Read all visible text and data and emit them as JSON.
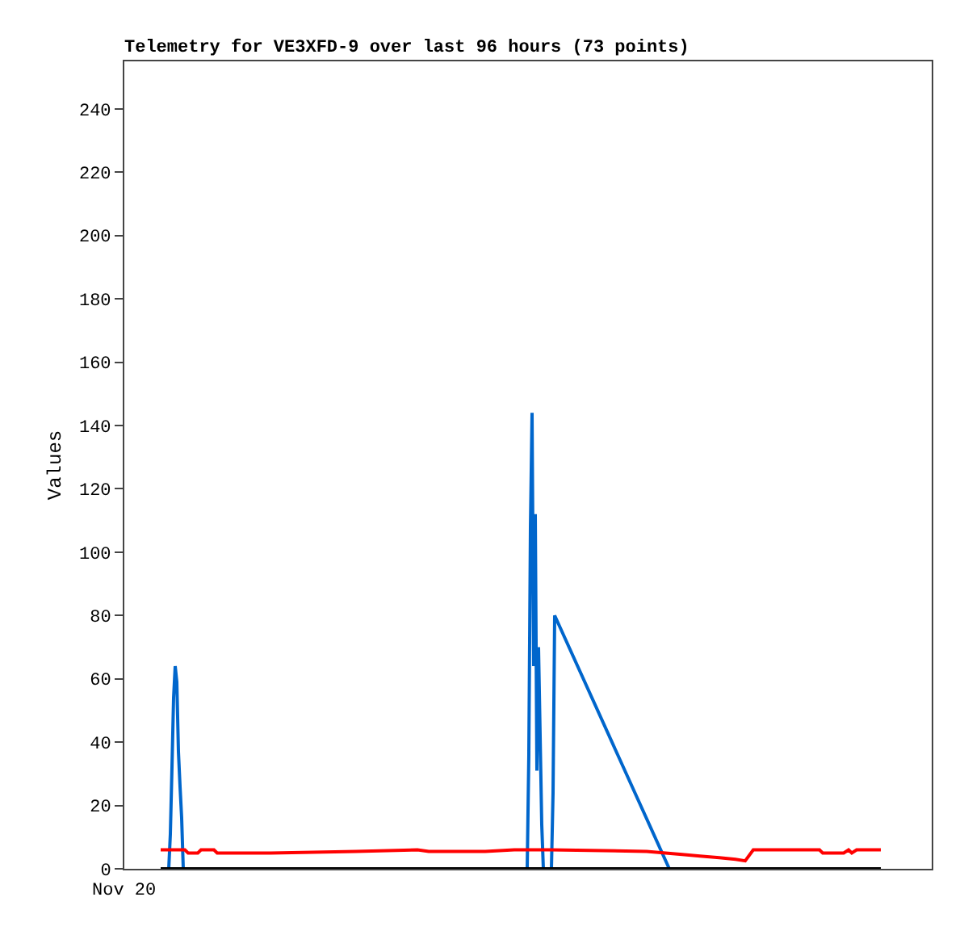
{
  "chart_data": {
    "type": "line",
    "title": "Telemetry for VE3XFD-9 over last 96 hours (73 points)",
    "ylabel": "Values",
    "annotations": [
      "Nov 20"
    ],
    "tick_labels": "y",
    "categories": [
      null,
      null,
      null,
      null,
      null,
      null,
      null,
      null,
      null,
      null,
      null,
      null,
      null,
      null,
      null,
      null,
      null,
      null,
      null,
      null,
      null,
      null,
      null,
      null,
      null,
      null,
      null,
      null,
      null,
      null,
      null,
      null,
      null,
      null,
      null,
      null,
      null,
      null,
      null,
      null,
      null,
      null,
      null,
      null,
      null,
      null,
      null,
      null,
      null,
      null,
      null,
      null,
      null,
      null,
      null,
      null,
      null,
      null,
      null,
      null,
      null,
      null,
      null,
      null,
      null,
      null,
      null,
      null,
      null,
      null,
      null,
      null,
      null,
      null,
      null,
      null,
      null,
      null,
      null,
      null,
      null,
      null,
      null,
      null,
      null,
      null,
      null,
      null,
      null,
      null,
      null,
      null,
      null,
      null,
      null,
      null,
      null,
      null,
      null,
      null,
      null,
      null,
      null,
      null,
      null,
      null,
      null,
      null,
      null,
      null,
      null,
      null,
      null,
      null,
      null,
      null,
      null,
      null,
      null,
      null,
      null,
      null,
      null,
      null,
      null,
      null,
      null,
      null,
      null,
      null,
      null,
      null,
      null,
      null,
      null,
      null,
      null,
      null,
      null,
      null,
      null,
      null,
      null,
      null,
      null,
      null,
      null,
      null,
      null,
      null,
      null,
      null,
      null,
      null,
      null,
      null,
      null,
      null,
      null,
      null,
      null,
      null,
      null,
      null,
      null,
      null,
      null,
      null,
      null,
      null,
      null,
      null,
      null,
      null,
      null,
      null,
      null,
      null,
      null,
      null,
      null,
      null,
      null,
      null,
      null,
      null,
      null,
      null,
      null,
      null,
      null,
      null,
      null,
      null,
      null,
      null,
      null,
      null,
      null,
      null,
      null,
      null,
      null,
      null,
      null,
      null,
      null,
      null,
      null,
      null,
      null,
      null,
      null,
      null,
      null,
      null,
      null,
      null,
      null,
      null,
      null,
      null,
      null,
      null,
      null,
      null,
      null,
      null,
      null,
      null,
      null,
      null,
      null,
      null,
      null,
      null,
      null,
      null,
      null,
      null,
      null,
      null,
      null,
      null,
      null,
      null,
      null,
      null,
      null,
      null,
      null,
      null,
      null,
      null,
      null,
      null,
      null,
      null,
      null,
      null,
      null,
      null,
      null,
      null,
      null,
      null,
      null,
      null,
      null,
      null,
      null,
      null,
      null,
      null,
      null,
      null,
      null,
      null,
      null,
      null,
      null,
      null,
      null,
      null,
      null,
      null,
      null,
      null,
      null,
      null,
      null,
      null,
      null,
      null,
      null,
      null,
      null,
      null,
      null,
      null,
      null,
      null,
      null,
      null,
      null,
      null,
      null,
      null,
      null,
      null,
      null,
      null,
      null,
      null,
      null,
      null,
      null,
      null,
      null,
      null,
      null,
      null,
      null,
      null,
      null,
      null,
      null,
      null,
      null,
      null,
      null,
      null,
      null,
      null,
      null,
      null,
      null,
      null,
      null,
      null,
      null,
      null,
      null,
      null,
      null,
      null,
      null,
      null,
      null,
      null,
      null,
      null,
      null,
      null,
      null,
      null,
      null,
      null,
      null,
      null,
      null,
      null,
      null,
      null,
      null,
      null,
      null,
      null,
      null,
      null,
      null,
      null,
      null,
      null,
      null,
      null,
      null,
      null,
      null,
      null,
      null,
      null,
      null,
      null,
      null,
      null,
      null,
      null,
      null,
      null,
      null,
      null,
      null,
      null,
      null,
      null,
      null,
      null,
      null,
      null,
      null,
      null,
      null,
      null,
      null,
      null,
      null,
      null,
      null,
      null,
      null,
      null,
      null,
      null,
      null,
      null,
      null,
      null,
      null,
      null,
      null,
      null,
      null,
      null,
      null,
      null,
      null,
      null,
      null,
      null,
      null,
      null,
      null,
      null,
      null,
      null,
      null,
      null,
      null,
      null,
      null,
      null,
      null,
      null,
      null,
      null,
      null,
      null,
      null,
      null,
      null,
      null,
      null,
      null,
      null,
      null,
      null,
      null,
      null,
      null,
      null,
      null,
      null,
      null,
      null,
      null,
      null,
      null,
      null,
      null,
      null,
      null,
      null,
      null,
      null,
      null,
      null,
      null,
      null,
      null,
      null,
      null,
      null,
      null,
      null,
      null,
      null,
      null,
      null,
      null,
      null,
      null,
      null,
      null,
      null,
      null,
      null,
      null,
      null,
      null
    ],
    "ylim": [
      0,
      255
    ],
    "yticks": [
      0,
      20,
      40,
      60,
      80,
      100,
      120,
      140,
      160,
      180,
      200,
      220,
      240
    ],
    "marker": "none",
    "line_style": "solid",
    "series": [
      {
        "color": "#0066cc",
        "values": [
          null,
          null,
          null,
          null,
          null,
          null,
          null,
          null,
          null,
          null,
          null,
          null,
          null,
          null,
          null,
          null,
          null,
          null,
          null,
          null,
          null,
          null,
          null,
          null,
          null,
          null,
          null,
          0,
          11,
          32,
          54,
          64,
          59,
          37,
          26,
          16,
          0,
          null,
          null,
          null,
          null,
          null,
          null,
          null,
          null,
          null,
          null,
          null,
          null,
          null,
          null,
          null,
          null,
          null,
          null,
          null,
          null,
          null,
          null,
          null,
          null,
          null,
          null,
          null,
          null,
          null,
          null,
          null,
          null,
          null,
          null,
          null,
          null,
          null,
          null,
          null,
          null,
          null,
          null,
          null,
          null,
          null,
          null,
          null,
          null,
          null,
          null,
          null,
          null,
          null,
          null,
          null,
          null,
          null,
          null,
          null,
          null,
          null,
          null,
          null,
          null,
          null,
          null,
          null,
          null,
          null,
          null,
          null,
          null,
          null,
          null,
          null,
          null,
          null,
          null,
          null,
          null,
          null,
          null,
          null,
          null,
          null,
          null,
          null,
          null,
          null,
          null,
          null,
          null,
          null,
          null,
          null,
          null,
          null,
          null,
          null,
          null,
          null,
          null,
          null,
          null,
          null,
          null,
          null,
          null,
          null,
          null,
          null,
          null,
          null,
          null,
          null,
          null,
          null,
          null,
          null,
          null,
          null,
          null,
          null,
          null,
          null,
          null,
          null,
          null,
          null,
          null,
          null,
          null,
          null,
          null,
          null,
          null,
          null,
          null,
          null,
          null,
          null,
          null,
          null,
          null,
          null,
          null,
          null,
          null,
          null,
          null,
          null,
          null,
          null,
          null,
          null,
          null,
          null,
          null,
          null,
          null,
          null,
          null,
          null,
          null,
          null,
          null,
          null,
          null,
          null,
          null,
          null,
          null,
          null,
          null,
          null,
          null,
          null,
          null,
          null,
          null,
          null,
          null,
          null,
          null,
          null,
          null,
          null,
          null,
          null,
          null,
          null,
          null,
          null,
          null,
          null,
          null,
          null,
          null,
          null,
          null,
          null,
          null,
          null,
          null,
          null,
          null,
          null,
          null,
          null,
          null,
          null,
          null,
          0,
          36,
          108,
          144,
          64,
          112,
          31,
          70,
          42,
          14,
          0,
          null,
          null,
          null,
          null,
          0,
          24,
          80,
          null,
          null,
          null,
          null,
          null,
          null,
          null,
          null,
          null,
          null,
          null,
          null,
          null,
          null,
          null,
          null,
          null,
          null,
          null,
          null,
          null,
          null,
          null,
          null,
          null,
          null,
          null,
          null,
          null,
          null,
          null,
          null,
          null,
          null,
          null,
          null,
          null,
          null,
          null,
          null,
          null,
          null,
          null,
          null,
          null,
          null,
          null,
          null,
          null,
          null,
          null,
          null,
          null,
          null,
          null,
          null,
          null,
          null,
          null,
          null,
          null,
          null,
          null,
          null,
          null,
          null,
          null,
          null,
          null,
          null,
          0,
          null,
          null,
          null,
          null,
          null,
          null,
          null,
          null,
          null,
          null,
          null,
          null,
          null,
          null,
          null,
          null,
          null,
          null,
          null,
          null,
          null,
          null,
          null,
          null,
          null,
          null,
          null,
          null,
          null,
          null,
          null,
          null,
          null,
          null,
          null,
          null,
          null,
          null,
          null,
          null,
          null,
          null,
          null,
          null,
          null,
          null,
          null,
          null,
          null,
          null,
          null,
          null,
          null,
          null,
          null,
          null,
          null,
          null,
          null,
          null,
          null,
          null,
          null,
          null,
          null,
          null,
          null,
          null,
          null,
          null,
          null,
          null,
          null,
          null,
          null,
          null,
          null,
          null,
          null,
          null,
          null,
          null,
          null,
          null,
          null,
          null,
          null,
          null,
          null,
          null,
          null,
          null,
          null,
          null,
          null,
          null,
          null,
          null,
          null,
          null,
          null,
          null,
          null,
          null,
          null,
          null,
          null,
          null,
          null,
          null,
          null,
          null,
          null,
          null,
          null,
          null,
          null,
          null,
          null,
          null,
          null,
          null,
          null,
          null,
          null,
          null,
          null,
          null,
          null,
          null,
          null,
          null,
          null,
          null,
          null,
          null,
          null,
          null,
          null,
          null,
          null,
          null,
          null,
          null,
          null,
          null,
          null,
          null,
          null,
          null,
          null,
          null,
          null,
          null,
          null,
          null,
          null,
          null,
          null,
          null,
          null,
          null
        ]
      },
      {
        "color": "#ff0000",
        "values": [
          null,
          null,
          null,
          null,
          null,
          null,
          null,
          null,
          null,
          null,
          null,
          null,
          null,
          null,
          null,
          null,
          null,
          null,
          null,
          null,
          null,
          null,
          6,
          null,
          null,
          null,
          null,
          null,
          null,
          null,
          null,
          null,
          null,
          null,
          null,
          null,
          null,
          6,
          null,
          5,
          null,
          null,
          null,
          null,
          null,
          5,
          null,
          6,
          null,
          null,
          null,
          null,
          null,
          null,
          null,
          6,
          null,
          5,
          null,
          null,
          null,
          null,
          null,
          null,
          null,
          null,
          null,
          null,
          null,
          null,
          null,
          null,
          null,
          null,
          null,
          null,
          null,
          null,
          null,
          null,
          null,
          null,
          null,
          null,
          null,
          null,
          null,
          null,
          null,
          null,
          5,
          null,
          null,
          null,
          null,
          null,
          null,
          null,
          null,
          null,
          null,
          null,
          null,
          null,
          null,
          null,
          null,
          null,
          null,
          null,
          null,
          null,
          null,
          null,
          null,
          null,
          null,
          null,
          null,
          null,
          null,
          null,
          null,
          null,
          null,
          null,
          null,
          null,
          null,
          null,
          null,
          null,
          null,
          null,
          null,
          null,
          null,
          null,
          null,
          null,
          null,
          null,
          null,
          5.5,
          null,
          null,
          null,
          null,
          null,
          null,
          null,
          null,
          null,
          null,
          null,
          null,
          null,
          null,
          null,
          null,
          null,
          null,
          null,
          null,
          null,
          null,
          null,
          null,
          null,
          null,
          null,
          null,
          null,
          null,
          null,
          null,
          null,
          null,
          null,
          null,
          null,
          6,
          null,
          null,
          null,
          null,
          null,
          null,
          5.5,
          null,
          null,
          null,
          null,
          null,
          null,
          null,
          null,
          null,
          null,
          null,
          null,
          null,
          null,
          null,
          null,
          null,
          null,
          null,
          null,
          null,
          null,
          null,
          null,
          null,
          null,
          null,
          null,
          null,
          null,
          null,
          null,
          null,
          null,
          5.5,
          null,
          null,
          null,
          null,
          null,
          null,
          null,
          null,
          null,
          null,
          null,
          null,
          null,
          null,
          null,
          null,
          null,
          6,
          null,
          null,
          null,
          null,
          null,
          null,
          null,
          null,
          null,
          null,
          null,
          null,
          null,
          null,
          null,
          null,
          null,
          null,
          null,
          null,
          null,
          6,
          null,
          null,
          null,
          null,
          null,
          null,
          null,
          null,
          null,
          null,
          null,
          null,
          null,
          null,
          null,
          null,
          null,
          null,
          null,
          null,
          null,
          null,
          null,
          null,
          null,
          null,
          null,
          null,
          null,
          null,
          null,
          null,
          null,
          null,
          null,
          null,
          null,
          null,
          null,
          null,
          null,
          null,
          null,
          null,
          null,
          null,
          null,
          null,
          null,
          null,
          null,
          null,
          null,
          null,
          null,
          null,
          null,
          null,
          null,
          5.5,
          null,
          null,
          null,
          null,
          null,
          null,
          null,
          null,
          null,
          null,
          null,
          null,
          null,
          null,
          null,
          null,
          null,
          null,
          null,
          null,
          null,
          4.5,
          null,
          null,
          null,
          null,
          null,
          null,
          null,
          null,
          null,
          null,
          4,
          null,
          null,
          null,
          null,
          null,
          null,
          null,
          null,
          null,
          null,
          null,
          3.5,
          null,
          null,
          null,
          null,
          null,
          null,
          null,
          null,
          null,
          3,
          null,
          null,
          null,
          null,
          null,
          2.5,
          null,
          null,
          null,
          null,
          6,
          null,
          null,
          null,
          null,
          null,
          null,
          null,
          null,
          null,
          null,
          null,
          null,
          null,
          null,
          null,
          null,
          null,
          null,
          null,
          null,
          null,
          null,
          null,
          null,
          null,
          null,
          null,
          null,
          null,
          null,
          null,
          null,
          null,
          null,
          null,
          null,
          null,
          null,
          null,
          null,
          6,
          null,
          5,
          null,
          null,
          null,
          null,
          null,
          null,
          null,
          null,
          null,
          null,
          null,
          null,
          5,
          null,
          null,
          6,
          null,
          5,
          null,
          null,
          6,
          null,
          null,
          null,
          null,
          null,
          null,
          null,
          null,
          null,
          null,
          null,
          null,
          null,
          null,
          6,
          null,
          null,
          null,
          null,
          null,
          null,
          null,
          null,
          null,
          null,
          null,
          null,
          null,
          null,
          null,
          null,
          null,
          null,
          null,
          null,
          null,
          null,
          null,
          null,
          null,
          null,
          null,
          null,
          null,
          null,
          null
        ]
      },
      {
        "color": "#000000",
        "values": [
          null,
          null,
          null,
          null,
          null,
          null,
          null,
          null,
          null,
          null,
          null,
          null,
          null,
          null,
          null,
          null,
          null,
          null,
          null,
          null,
          null,
          null,
          0,
          null,
          null,
          null,
          null,
          null,
          null,
          null,
          null,
          null,
          null,
          null,
          null,
          null,
          null,
          null,
          null,
          null,
          null,
          null,
          null,
          null,
          null,
          null,
          null,
          null,
          null,
          null,
          null,
          null,
          null,
          null,
          null,
          null,
          null,
          null,
          null,
          null,
          null,
          null,
          null,
          null,
          null,
          null,
          null,
          null,
          null,
          null,
          null,
          null,
          null,
          null,
          null,
          null,
          null,
          null,
          null,
          null,
          null,
          null,
          null,
          null,
          null,
          null,
          null,
          null,
          null,
          null,
          null,
          null,
          null,
          null,
          null,
          null,
          null,
          null,
          null,
          null,
          null,
          null,
          null,
          null,
          null,
          null,
          null,
          null,
          null,
          null,
          null,
          null,
          null,
          null,
          null,
          null,
          null,
          null,
          null,
          null,
          null,
          null,
          null,
          null,
          null,
          null,
          null,
          null,
          null,
          null,
          null,
          null,
          null,
          null,
          null,
          null,
          null,
          null,
          null,
          null,
          null,
          null,
          null,
          null,
          null,
          null,
          null,
          null,
          null,
          null,
          null,
          null,
          null,
          null,
          null,
          null,
          null,
          null,
          null,
          null,
          null,
          null,
          null,
          null,
          null,
          null,
          null,
          null,
          null,
          null,
          null,
          null,
          null,
          null,
          null,
          null,
          null,
          null,
          null,
          null,
          null,
          null,
          null,
          null,
          null,
          null,
          null,
          null,
          null,
          null,
          null,
          null,
          null,
          null,
          null,
          null,
          null,
          null,
          null,
          null,
          null,
          null,
          null,
          null,
          null,
          null,
          null,
          null,
          null,
          null,
          null,
          null,
          null,
          null,
          null,
          null,
          null,
          null,
          null,
          null,
          null,
          null,
          null,
          null,
          null,
          null,
          null,
          null,
          null,
          null,
          null,
          null,
          null,
          null,
          null,
          null,
          null,
          null,
          null,
          null,
          null,
          null,
          null,
          null,
          null,
          null,
          null,
          null,
          null,
          null,
          null,
          null,
          null,
          null,
          null,
          null,
          null,
          null,
          null,
          null,
          null,
          null,
          null,
          null,
          null,
          null,
          null,
          null,
          null,
          null,
          null,
          null,
          null,
          null,
          null,
          null,
          null,
          null,
          null,
          null,
          null,
          null,
          null,
          null,
          null,
          null,
          null,
          null,
          null,
          null,
          null,
          null,
          null,
          null,
          null,
          null,
          null,
          null,
          null,
          null,
          null,
          null,
          null,
          null,
          null,
          null,
          null,
          null,
          null,
          null,
          null,
          null,
          null,
          null,
          null,
          null,
          null,
          null,
          null,
          null,
          null,
          null,
          null,
          null,
          null,
          null,
          null,
          null,
          null,
          null,
          null,
          null,
          null,
          null,
          null,
          null,
          null,
          null,
          null,
          null,
          null,
          null,
          null,
          null,
          null,
          null,
          null,
          null,
          null,
          null,
          null,
          null,
          null,
          null,
          null,
          null,
          null,
          null,
          null,
          null,
          null,
          null,
          null,
          null,
          null,
          null,
          null,
          null,
          null,
          null,
          null,
          null,
          null,
          null,
          null,
          null,
          null,
          null,
          null,
          null,
          null,
          null,
          null,
          null,
          null,
          null,
          null,
          null,
          null,
          null,
          null,
          null,
          null,
          null,
          null,
          null,
          null,
          null,
          null,
          null,
          null,
          null,
          null,
          null,
          null,
          null,
          null,
          null,
          null,
          null,
          null,
          null,
          null,
          null,
          null,
          null,
          null,
          null,
          null,
          null,
          null,
          null,
          null,
          null,
          null,
          null,
          null,
          null,
          null,
          null,
          null,
          null,
          null,
          null,
          null,
          null,
          null,
          null,
          null,
          null,
          null,
          null,
          null,
          null,
          null,
          null,
          null,
          null,
          null,
          null,
          null,
          null,
          null,
          null,
          null,
          null,
          null,
          null,
          null,
          null,
          null,
          null,
          null,
          null,
          null,
          null,
          null,
          null,
          0,
          null,
          null,
          null,
          null,
          null,
          null,
          null,
          null,
          null,
          null,
          null,
          null,
          null,
          null,
          null,
          null,
          null,
          null,
          null,
          null,
          null,
          null,
          null,
          null,
          null,
          null,
          null,
          null,
          null,
          null,
          null
        ]
      }
    ]
  }
}
